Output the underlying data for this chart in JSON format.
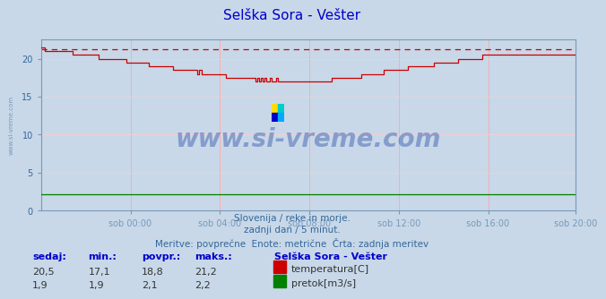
{
  "title": "Selška Sora - Vešter",
  "title_color": "#0000cc",
  "background_color": "#c8d8e8",
  "plot_bg_color": "#c8d8e8",
  "grid_color_v": "#ffaaaa",
  "grid_color_h": "#ffcccc",
  "xlim": [
    0,
    287
  ],
  "ylim": [
    0,
    22.5
  ],
  "yticks": [
    0,
    5,
    10,
    15,
    20
  ],
  "xtick_labels": [
    "sob 00:00",
    "sob 04:00",
    "sob 08:00",
    "sob 12:00",
    "sob 16:00",
    "sob 20:00"
  ],
  "xtick_positions": [
    48,
    96,
    144,
    192,
    240,
    287
  ],
  "temp_color": "#cc0000",
  "flow_color": "#008000",
  "dashed_line_y": 21.2,
  "watermark": "www.si-vreme.com",
  "watermark_color": "#3355aa",
  "left_label": "www.si-vreme.com",
  "subtitle1": "Slovenija / reke in morje.",
  "subtitle2": "zadnji dan / 5 minut.",
  "subtitle3": "Meritve: povprečne  Enote: metrične  Črta: zadnja meritev",
  "footer_headers": [
    "sedaj:",
    "min.:",
    "povpr.:",
    "maks.:"
  ],
  "footer_temp": [
    "20,5",
    "17,1",
    "18,8",
    "21,2"
  ],
  "footer_flow": [
    "1,9",
    "1,9",
    "2,1",
    "2,2"
  ],
  "legend_title": "Selška Sora - Vešter",
  "legend_temp": "temperatura[C]",
  "legend_flow": "pretok[m3/s]",
  "n_points": 288,
  "spine_color": "#7799bb",
  "tick_label_color": "#336699",
  "subtitle_color": "#336699"
}
